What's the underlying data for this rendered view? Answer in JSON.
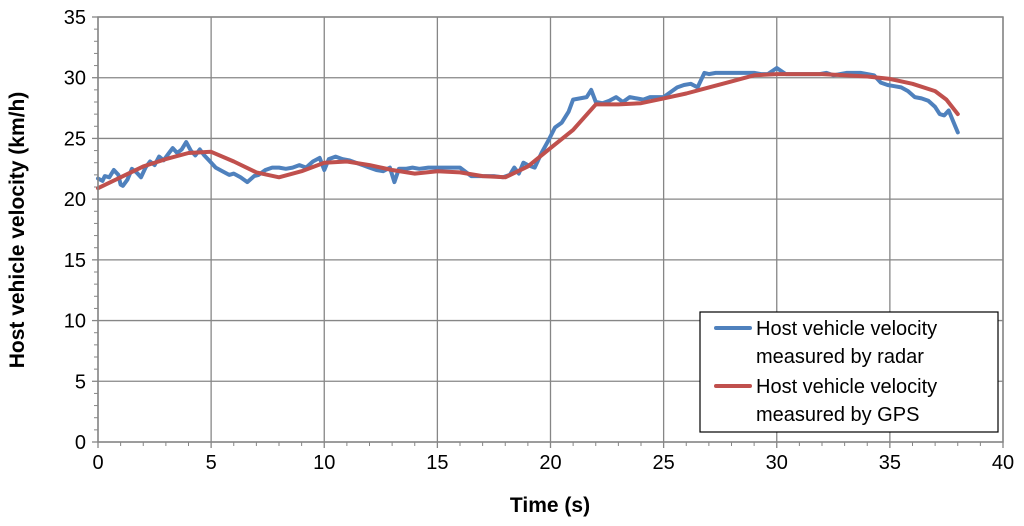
{
  "chart_data": {
    "type": "line",
    "title": "",
    "xlabel": "Time (s)",
    "ylabel": "Host vehicle velocity (km/h)",
    "xlim": [
      0,
      40
    ],
    "ylim": [
      0,
      35
    ],
    "x_ticks": [
      "0",
      "5",
      "10",
      "15",
      "20",
      "25",
      "30",
      "35",
      "40"
    ],
    "y_ticks": [
      "0",
      "5",
      "10",
      "15",
      "20",
      "25",
      "30",
      "35"
    ],
    "grid": true,
    "legend_position": "bottom-right",
    "series": [
      {
        "name": "Host vehicle velocity measured by radar",
        "legend_line1": "Host vehicle velocity",
        "legend_line2": "measured by radar",
        "color": "#4f81bd",
        "x": [
          0,
          0.2,
          0.3,
          0.5,
          0.7,
          0.9,
          1.0,
          1.1,
          1.3,
          1.5,
          1.7,
          1.9,
          2.1,
          2.3,
          2.5,
          2.7,
          2.9,
          3.1,
          3.3,
          3.5,
          3.7,
          3.9,
          4.1,
          4.3,
          4.5,
          4.7,
          4.9,
          5.2,
          5.5,
          5.8,
          6.0,
          6.3,
          6.6,
          6.9,
          7.1,
          7.4,
          7.7,
          8.0,
          8.3,
          8.6,
          8.9,
          9.2,
          9.5,
          9.8,
          10.0,
          10.2,
          10.5,
          10.8,
          11.1,
          11.4,
          11.7,
          12.0,
          12.3,
          12.6,
          12.9,
          13.1,
          13.3,
          13.6,
          13.9,
          14.2,
          14.6,
          15.0,
          15.5,
          16.0,
          16.5,
          17.0,
          17.5,
          17.9,
          18.2,
          18.4,
          18.6,
          18.8,
          19.0,
          19.3,
          19.6,
          19.9,
          20.2,
          20.5,
          20.8,
          21.0,
          21.3,
          21.6,
          21.8,
          22.0,
          22.3,
          22.6,
          22.9,
          23.2,
          23.5,
          23.8,
          24.1,
          24.4,
          24.7,
          25.0,
          25.3,
          25.6,
          25.9,
          26.2,
          26.5,
          26.8,
          27.0,
          27.3,
          27.6,
          28.0,
          28.5,
          29.0,
          29.3,
          29.6,
          30.0,
          30.4,
          30.8,
          31.2,
          31.6,
          31.9,
          32.2,
          32.5,
          32.8,
          33.1,
          33.4,
          33.7,
          34.0,
          34.3,
          34.6,
          34.9,
          35.2,
          35.5,
          35.8,
          36.1,
          36.4,
          36.7,
          37.0,
          37.2,
          37.4,
          37.6,
          37.8,
          38.0
        ],
        "values": [
          21.7,
          21.5,
          21.9,
          21.8,
          22.4,
          22.0,
          21.2,
          21.1,
          21.6,
          22.5,
          22.2,
          21.8,
          22.6,
          23.1,
          22.8,
          23.5,
          23.2,
          23.7,
          24.2,
          23.8,
          24.1,
          24.7,
          24.0,
          23.6,
          24.1,
          23.6,
          23.2,
          22.6,
          22.3,
          22.0,
          22.1,
          21.8,
          21.4,
          21.9,
          22.0,
          22.4,
          22.6,
          22.6,
          22.5,
          22.6,
          22.8,
          22.6,
          23.1,
          23.4,
          22.4,
          23.3,
          23.5,
          23.3,
          23.2,
          23.0,
          22.8,
          22.6,
          22.4,
          22.3,
          22.6,
          21.4,
          22.5,
          22.5,
          22.6,
          22.5,
          22.6,
          22.6,
          22.6,
          22.6,
          21.9,
          21.9,
          21.9,
          21.8,
          22.0,
          22.6,
          22.1,
          23.0,
          22.8,
          22.6,
          23.8,
          24.8,
          25.9,
          26.3,
          27.2,
          28.2,
          28.3,
          28.4,
          29.0,
          28.0,
          27.9,
          28.1,
          28.4,
          28.0,
          28.4,
          28.3,
          28.2,
          28.4,
          28.4,
          28.4,
          28.8,
          29.2,
          29.4,
          29.5,
          29.2,
          30.4,
          30.3,
          30.4,
          30.4,
          30.4,
          30.4,
          30.4,
          30.3,
          30.3,
          30.8,
          30.3,
          30.3,
          30.3,
          30.3,
          30.3,
          30.4,
          30.2,
          30.3,
          30.4,
          30.4,
          30.4,
          30.3,
          30.2,
          29.6,
          29.4,
          29.3,
          29.2,
          28.9,
          28.4,
          28.3,
          28.1,
          27.6,
          27.0,
          26.9,
          27.3,
          26.4,
          25.5
        ]
      },
      {
        "name": "Host vehicle velocity measured by GPS",
        "legend_line1": "Host vehicle velocity",
        "legend_line2": "measured by GPS",
        "color": "#c0504d",
        "x": [
          0,
          1,
          2,
          3,
          4,
          5,
          6,
          7,
          8,
          9,
          10,
          11,
          12,
          13,
          14,
          15,
          16,
          17,
          18,
          19,
          20,
          21,
          22,
          23,
          24,
          25,
          26,
          27,
          28,
          29,
          30,
          31,
          32,
          33,
          34,
          35,
          36,
          37,
          37.5,
          38
        ],
        "values": [
          20.9,
          21.8,
          22.7,
          23.3,
          23.8,
          23.9,
          23.1,
          22.2,
          21.8,
          22.3,
          23.0,
          23.1,
          22.8,
          22.4,
          22.1,
          22.3,
          22.2,
          21.9,
          21.8,
          22.7,
          24.2,
          25.7,
          27.8,
          27.8,
          27.9,
          28.3,
          28.7,
          29.2,
          29.7,
          30.2,
          30.3,
          30.3,
          30.3,
          30.2,
          30.1,
          29.9,
          29.5,
          28.9,
          28.2,
          27.0
        ]
      }
    ]
  }
}
